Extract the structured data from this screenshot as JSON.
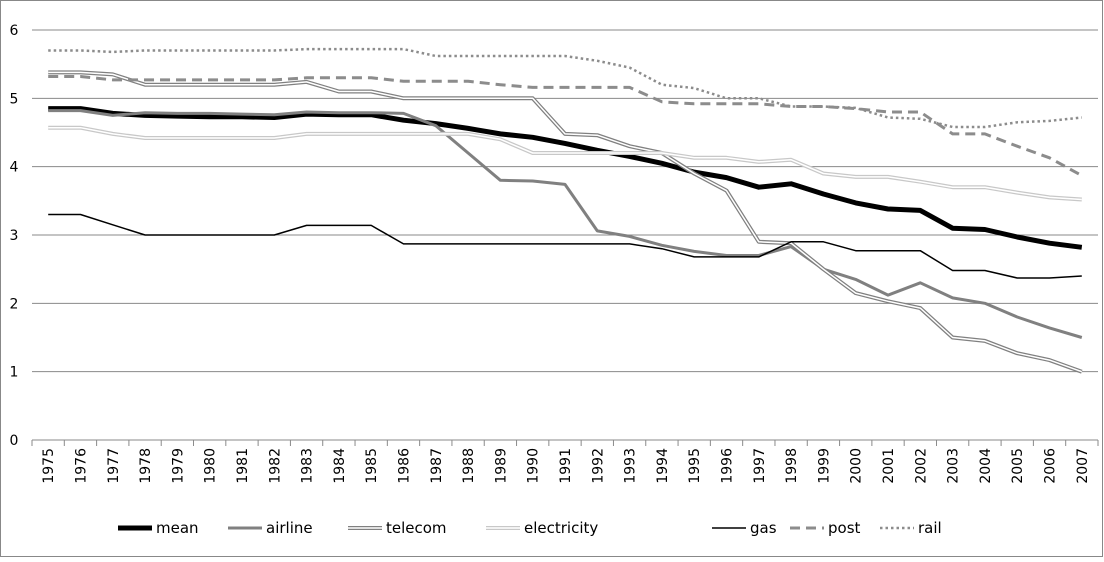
{
  "chart_data": {
    "type": "line",
    "categories": [
      "1975",
      "1976",
      "1977",
      "1978",
      "1979",
      "1980",
      "1981",
      "1982",
      "1983",
      "1984",
      "1985",
      "1986",
      "1987",
      "1988",
      "1989",
      "1990",
      "1991",
      "1992",
      "1993",
      "1994",
      "1995",
      "1996",
      "1997",
      "1998",
      "1999",
      "2000",
      "2001",
      "2002",
      "2003",
      "2004",
      "2005",
      "2006",
      "2007"
    ],
    "ylim": [
      0,
      6
    ],
    "yticks": [
      0,
      1,
      2,
      3,
      4,
      5,
      6
    ],
    "grid": true,
    "legend": "bottom",
    "series": [
      {
        "name": "mean",
        "color": "#000000",
        "line_style": "thick",
        "values": [
          4.85,
          4.85,
          4.78,
          4.75,
          4.74,
          4.73,
          4.73,
          4.72,
          4.77,
          4.76,
          4.76,
          4.68,
          4.63,
          4.56,
          4.48,
          4.43,
          4.34,
          4.24,
          4.15,
          4.05,
          3.92,
          3.84,
          3.7,
          3.75,
          3.6,
          3.47,
          3.38,
          3.36,
          3.1,
          3.08,
          2.97,
          2.88,
          2.82
        ]
      },
      {
        "name": "airline",
        "color": "#808080",
        "line_style": "medium",
        "values": [
          4.82,
          4.82,
          4.75,
          4.79,
          4.78,
          4.78,
          4.77,
          4.76,
          4.8,
          4.79,
          4.79,
          4.78,
          4.6,
          4.2,
          3.8,
          3.79,
          3.74,
          3.06,
          2.98,
          2.85,
          2.76,
          2.7,
          2.7,
          2.83,
          2.5,
          2.35,
          2.12,
          2.3,
          2.08,
          2.0,
          1.8,
          1.64,
          1.5
        ]
      },
      {
        "name": "telecom",
        "color": "#808080",
        "line_style": "double",
        "values": [
          5.38,
          5.38,
          5.35,
          5.2,
          5.2,
          5.2,
          5.2,
          5.2,
          5.24,
          5.1,
          5.1,
          5.0,
          5.0,
          5.0,
          5.0,
          5.0,
          4.48,
          4.46,
          4.3,
          4.2,
          3.9,
          3.65,
          2.9,
          2.88,
          2.5,
          2.15,
          2.03,
          1.93,
          1.5,
          1.45,
          1.27,
          1.17,
          1.0
        ]
      },
      {
        "name": "electricity",
        "color": "#c8c8c8",
        "line_style": "double",
        "values": [
          4.57,
          4.57,
          4.48,
          4.42,
          4.42,
          4.42,
          4.42,
          4.42,
          4.48,
          4.48,
          4.48,
          4.48,
          4.48,
          4.48,
          4.4,
          4.2,
          4.2,
          4.2,
          4.2,
          4.2,
          4.13,
          4.13,
          4.07,
          4.1,
          3.9,
          3.85,
          3.85,
          3.78,
          3.7,
          3.7,
          3.62,
          3.55,
          3.52
        ]
      },
      {
        "name": "gas",
        "color": "#000000",
        "line_style": "thin",
        "values": [
          3.3,
          3.3,
          3.15,
          3.0,
          3.0,
          3.0,
          3.0,
          3.0,
          3.14,
          3.14,
          3.14,
          2.87,
          2.87,
          2.87,
          2.87,
          2.87,
          2.87,
          2.87,
          2.87,
          2.8,
          2.68,
          2.68,
          2.68,
          2.9,
          2.9,
          2.77,
          2.77,
          2.77,
          2.48,
          2.48,
          2.37,
          2.37,
          2.4
        ]
      },
      {
        "name": "post",
        "color": "#8c8c8c",
        "line_style": "dashed",
        "values": [
          5.32,
          5.32,
          5.27,
          5.27,
          5.27,
          5.27,
          5.27,
          5.27,
          5.3,
          5.3,
          5.3,
          5.25,
          5.25,
          5.25,
          5.2,
          5.16,
          5.16,
          5.16,
          5.16,
          4.95,
          4.92,
          4.92,
          4.92,
          4.88,
          4.88,
          4.85,
          4.8,
          4.8,
          4.48,
          4.48,
          4.3,
          4.13,
          3.87
        ]
      },
      {
        "name": "rail",
        "color": "#8c8c8c",
        "line_style": "dotted",
        "values": [
          5.7,
          5.7,
          5.68,
          5.7,
          5.7,
          5.7,
          5.7,
          5.7,
          5.72,
          5.72,
          5.72,
          5.72,
          5.62,
          5.62,
          5.62,
          5.62,
          5.62,
          5.55,
          5.45,
          5.2,
          5.15,
          5.0,
          5.0,
          4.88,
          4.88,
          4.86,
          4.72,
          4.7,
          4.58,
          4.58,
          4.65,
          4.67,
          4.72
        ]
      }
    ]
  }
}
